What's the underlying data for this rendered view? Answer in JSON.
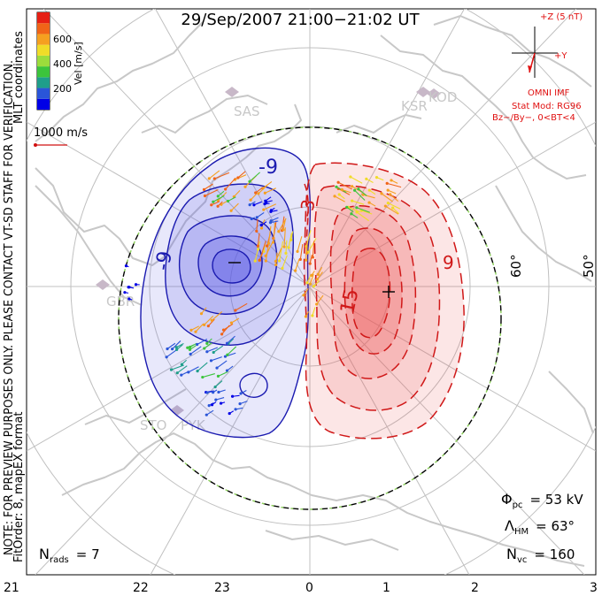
{
  "title": "29/Sep/2007 21:00−21:02 UT",
  "colorbar": {
    "ticks": [
      "600",
      "400",
      "200"
    ],
    "label": "Vel [m/s]",
    "colors": [
      "#0000e6",
      "#2a55d8",
      "#1f9e8a",
      "#3cc43c",
      "#9cdc3c",
      "#f0dc28",
      "#f5a020",
      "#f06418",
      "#e62014"
    ]
  },
  "vector_scale": {
    "label": "1000 m/s",
    "color": "#d01010"
  },
  "side_text": {
    "preview": "NOTE: FOR PREVIEW PURPOSES ONLY. PLEASE CONTACT VT-SD STAFF FOR VERIFICATION.",
    "fit": "FitOrder: 8, mapEX format",
    "coords": "MLT coordinates"
  },
  "imf": {
    "z_label": "+Z (5 nT)",
    "y_label": "+Y",
    "source": "OMNI IMF",
    "model": "Stat Mod: RG96",
    "condition": "Bz−/By−, 0<BT<4",
    "color": "#e01010"
  },
  "stations": [
    "SAS",
    "KSR",
    "KOD",
    "GBR",
    "STO",
    "PYK"
  ],
  "latitude_labels": [
    "60°",
    "50°"
  ],
  "contour_labels": {
    "negative": [
      "-9",
      "-9",
      "-3"
    ],
    "positive": [
      "15",
      "9"
    ]
  },
  "stats": {
    "phi_symbol": "Φ",
    "phi_sub": "pc",
    "phi_value": "= 53 kV",
    "lambda_symbol": "Λ",
    "lambda_sub": "HM",
    "lambda_value": "= 63°",
    "nvc_symbol": "N",
    "nvc_sub": "vc",
    "nvc_value": "= 160",
    "nrads_symbol": "N",
    "nrads_sub": "rads",
    "nrads_value": "= 7"
  },
  "mlt_axis": [
    "21",
    "22",
    "23",
    "0",
    "1",
    "2",
    "3"
  ],
  "colors": {
    "negative_fill": "#5a5ae6",
    "negative_line": "#1a1ab0",
    "positive_fill": "#ee5555",
    "positive_line": "#d01818",
    "coast": "#c8c8c8",
    "grid": "#c0c0c0",
    "station": "#c8b8c8"
  }
}
